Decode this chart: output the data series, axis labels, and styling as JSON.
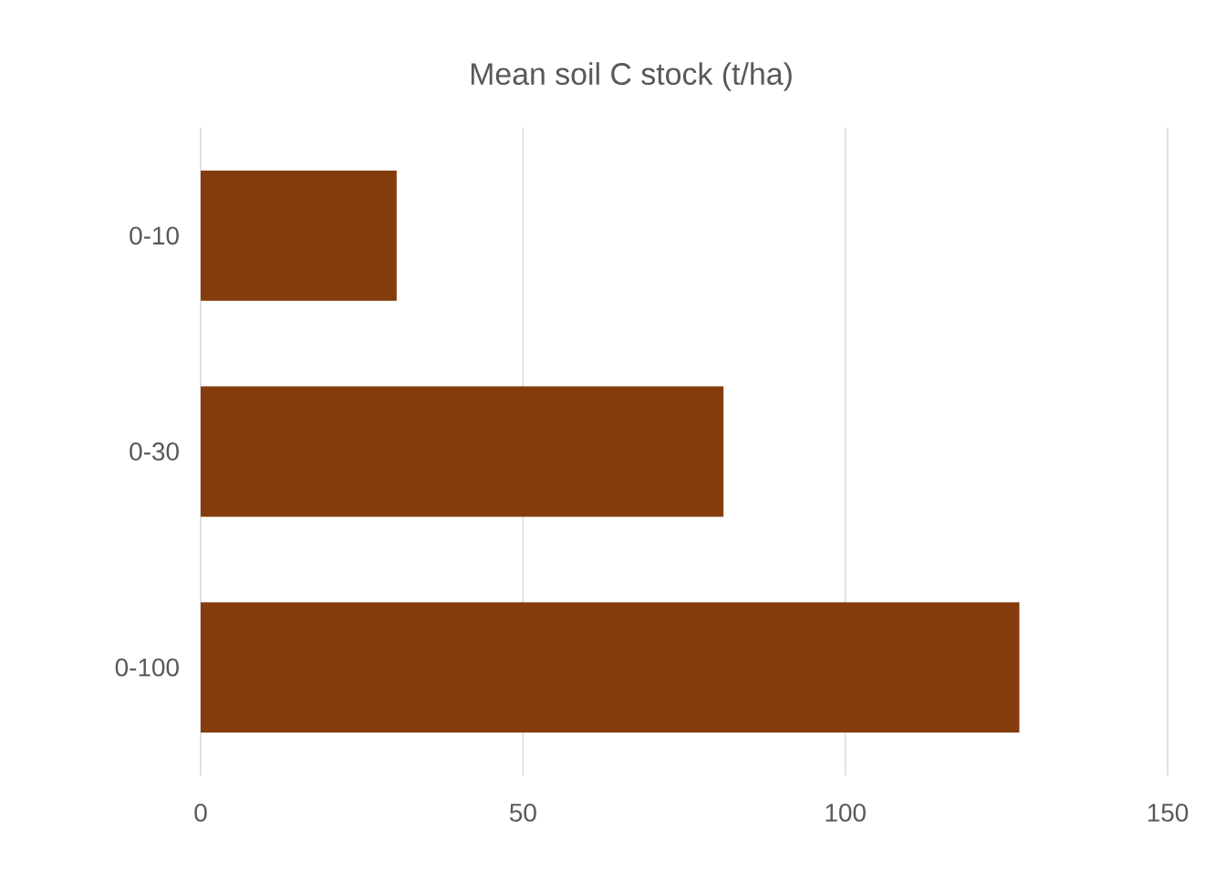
{
  "chart_data": {
    "type": "bar",
    "orientation": "horizontal",
    "title": "Mean soil C stock (t/ha)",
    "categories": [
      "0-10",
      "0-30",
      "0-100"
    ],
    "values": [
      30.4,
      81.1,
      127
    ],
    "color": "#843c0c",
    "xlim": [
      0,
      150
    ],
    "xticks": [
      0,
      50,
      100,
      150
    ],
    "grid": "x"
  }
}
